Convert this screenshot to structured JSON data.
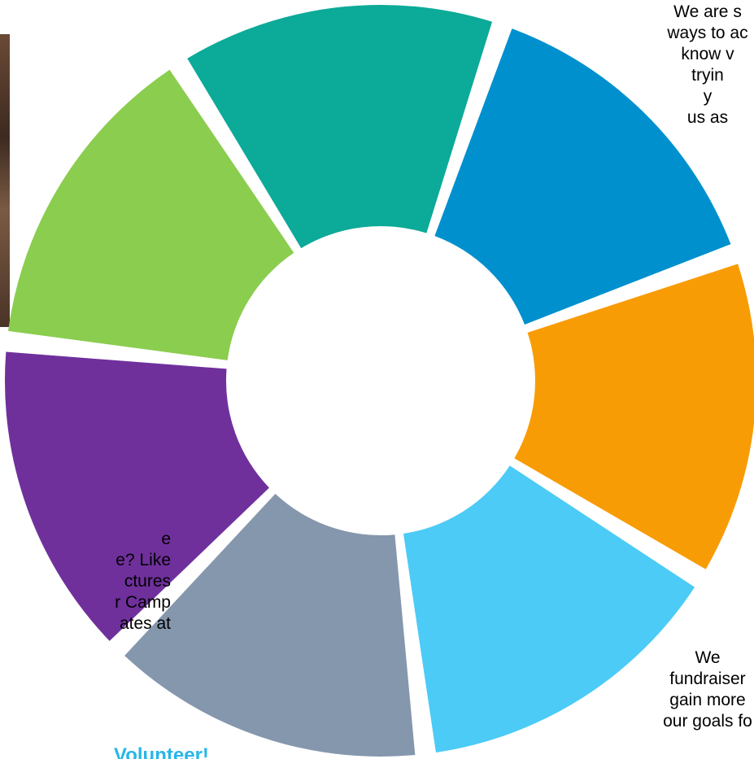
{
  "ring": {
    "segments": [
      {
        "id": "green",
        "color": "#8BCD4F"
      },
      {
        "id": "teal",
        "color": "#0CAA98"
      },
      {
        "id": "blue",
        "color": "#0090CE"
      },
      {
        "id": "orange",
        "color": "#F89C05"
      },
      {
        "id": "light-blue",
        "color": "#4CCBF6"
      },
      {
        "id": "gray-blue",
        "color": "#8597AD"
      },
      {
        "id": "purple",
        "color": "#6F309C"
      }
    ],
    "gap_color": "#ffffff"
  },
  "texts": {
    "top_right": {
      "lines": [
        "We are s",
        "ways to ac",
        "know v",
        "tryin",
        "y",
        "us as"
      ]
    },
    "left": {
      "lines": [
        "e",
        "e? Like",
        "ctures",
        "r Camp",
        "ates at"
      ]
    },
    "bottom_right": {
      "lines": [
        "We",
        "fundraiser",
        "gain more",
        "our goals fo"
      ]
    },
    "volunteer": {
      "label": "Volunteer!",
      "color": "#28B6E8"
    }
  }
}
